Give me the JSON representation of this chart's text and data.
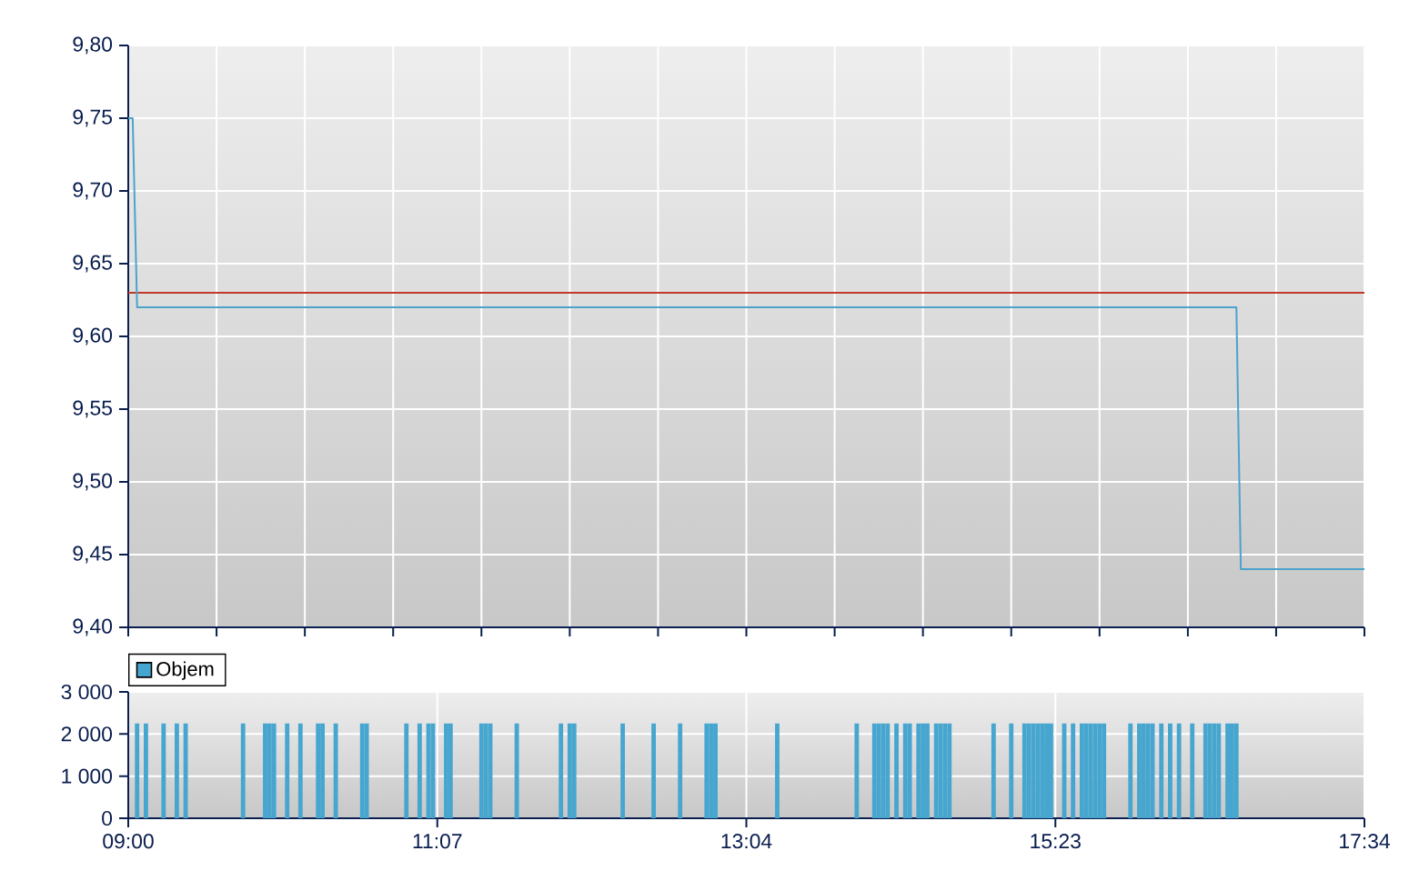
{
  "chart_data": [
    {
      "type": "line",
      "categories": [
        null,
        null,
        null,
        null,
        null,
        null,
        null,
        null,
        null,
        null,
        null,
        null,
        null,
        null,
        null,
        null,
        null,
        null,
        null,
        null,
        null,
        null,
        null,
        null,
        null,
        null,
        null,
        null,
        null,
        null,
        null,
        null,
        null,
        null,
        null,
        null,
        null,
        null,
        null,
        null,
        null,
        null,
        null,
        null,
        null,
        null,
        null,
        null,
        null,
        null,
        null,
        null,
        null,
        null,
        null,
        null,
        null,
        null,
        null,
        null,
        null,
        null,
        null,
        null,
        null,
        null,
        null,
        null,
        null,
        null,
        null,
        null,
        null,
        null,
        null,
        null,
        null,
        null,
        null,
        null,
        null,
        null,
        null,
        null,
        null,
        null,
        null,
        null,
        null,
        null,
        null,
        null,
        null,
        null,
        null,
        null,
        null,
        null,
        null,
        null,
        null,
        null,
        null,
        null,
        null,
        null,
        null,
        null,
        null,
        null,
        null,
        null,
        null,
        null,
        null,
        null,
        null,
        null,
        null,
        null,
        null,
        null,
        null,
        null,
        null,
        null,
        null,
        null,
        null,
        null,
        null,
        null,
        null,
        null,
        null,
        null,
        null,
        null,
        null,
        null,
        null,
        null,
        null,
        null,
        null,
        null,
        null,
        null,
        null,
        null,
        null,
        null,
        null,
        null,
        null,
        null,
        null,
        null,
        null,
        null,
        null,
        null,
        null,
        null,
        null,
        null,
        null,
        null,
        null,
        null,
        null,
        null,
        null,
        null,
        null,
        null,
        null,
        null,
        null,
        null,
        null,
        null,
        null,
        null,
        null,
        null,
        null,
        null,
        null,
        null,
        null,
        null,
        null,
        null,
        null,
        null,
        null,
        null,
        null,
        null,
        null,
        null,
        null,
        null,
        null,
        null,
        null,
        null,
        null,
        null,
        null,
        null,
        null,
        null,
        null,
        null,
        null,
        null,
        null,
        null,
        null,
        null,
        null,
        null,
        null,
        null,
        null,
        null,
        null,
        null,
        null,
        null,
        null,
        null,
        null,
        null,
        null,
        null,
        null,
        null,
        null,
        null,
        null,
        null,
        null,
        null,
        null,
        null,
        null,
        null,
        null,
        null,
        null,
        null,
        null,
        null,
        null,
        null,
        null,
        null,
        null,
        null,
        null,
        null,
        null,
        null,
        null,
        null,
        null,
        null,
        null,
        null,
        null,
        null,
        null,
        null,
        null,
        null,
        null,
        null,
        null
      ],
      "ylim": [
        9.4,
        9.8
      ],
      "yticks": [
        {
          "value": 9.4,
          "label": "9,40"
        },
        {
          "value": 9.45,
          "label": "9,45"
        },
        {
          "value": 9.5,
          "label": "9,50"
        },
        {
          "value": 9.55,
          "label": "9,55"
        },
        {
          "value": 9.6,
          "label": "9,60"
        },
        {
          "value": 9.65,
          "label": "9,65"
        },
        {
          "value": 9.7,
          "label": "9,70"
        },
        {
          "value": 9.75,
          "label": "9,75"
        },
        {
          "value": 9.8,
          "label": "9,80"
        }
      ],
      "tick_labels": "y",
      "grid": true,
      "legend": false,
      "marker": "none",
      "series": [
        {
          "color": "#4ba3cc",
          "values": [
            9.75,
            9.75,
            9.62,
            9.62,
            9.62,
            9.62,
            9.62,
            9.62,
            9.62,
            9.62,
            9.62,
            9.62,
            9.62,
            9.62,
            9.62,
            9.62,
            9.62,
            9.62,
            9.62,
            9.62,
            9.62,
            9.62,
            9.62,
            9.62,
            9.62,
            9.62,
            9.62,
            9.62,
            9.62,
            9.62,
            9.62,
            9.62,
            9.62,
            9.62,
            9.62,
            9.62,
            9.62,
            9.62,
            9.62,
            9.62,
            9.62,
            9.62,
            9.62,
            9.62,
            9.62,
            9.62,
            9.62,
            9.62,
            9.62,
            9.62,
            9.62,
            9.62,
            9.62,
            9.62,
            9.62,
            9.62,
            9.62,
            9.62,
            9.62,
            9.62,
            9.62,
            9.62,
            9.62,
            9.62,
            9.62,
            9.62,
            9.62,
            9.62,
            9.62,
            9.62,
            9.62,
            9.62,
            9.62,
            9.62,
            9.62,
            9.62,
            9.62,
            9.62,
            9.62,
            9.62,
            9.62,
            9.62,
            9.62,
            9.62,
            9.62,
            9.62,
            9.62,
            9.62,
            9.62,
            9.62,
            9.62,
            9.62,
            9.62,
            9.62,
            9.62,
            9.62,
            9.62,
            9.62,
            9.62,
            9.62,
            9.62,
            9.62,
            9.62,
            9.62,
            9.62,
            9.62,
            9.62,
            9.62,
            9.62,
            9.62,
            9.62,
            9.62,
            9.62,
            9.62,
            9.62,
            9.62,
            9.62,
            9.62,
            9.62,
            9.62,
            9.62,
            9.62,
            9.62,
            9.62,
            9.62,
            9.62,
            9.62,
            9.62,
            9.62,
            9.62,
            9.62,
            9.62,
            9.62,
            9.62,
            9.62,
            9.62,
            9.62,
            9.62,
            9.62,
            9.62,
            9.62,
            9.62,
            9.62,
            9.62,
            9.62,
            9.62,
            9.62,
            9.62,
            9.62,
            9.62,
            9.62,
            9.62,
            9.62,
            9.62,
            9.62,
            9.62,
            9.62,
            9.62,
            9.62,
            9.62,
            9.62,
            9.62,
            9.62,
            9.62,
            9.62,
            9.62,
            9.62,
            9.62,
            9.62,
            9.62,
            9.62,
            9.62,
            9.62,
            9.62,
            9.62,
            9.62,
            9.62,
            9.62,
            9.62,
            9.62,
            9.62,
            9.62,
            9.62,
            9.62,
            9.62,
            9.62,
            9.62,
            9.62,
            9.62,
            9.62,
            9.62,
            9.62,
            9.62,
            9.62,
            9.62,
            9.62,
            9.62,
            9.62,
            9.62,
            9.62,
            9.62,
            9.62,
            9.62,
            9.62,
            9.62,
            9.62,
            9.62,
            9.62,
            9.62,
            9.62,
            9.62,
            9.62,
            9.62,
            9.62,
            9.62,
            9.62,
            9.62,
            9.62,
            9.62,
            9.62,
            9.62,
            9.62,
            9.62,
            9.62,
            9.62,
            9.62,
            9.62,
            9.62,
            9.62,
            9.62,
            9.62,
            9.62,
            9.62,
            9.62,
            9.62,
            9.62,
            9.62,
            9.62,
            9.62,
            9.62,
            9.62,
            9.62,
            9.62,
            9.62,
            9.62,
            9.62,
            9.62,
            9.62,
            9.62,
            9.62,
            9.62,
            9.62,
            9.44,
            9.44,
            9.44,
            9.44,
            9.44,
            9.44,
            9.44,
            9.44,
            9.44,
            9.44,
            9.44,
            9.44,
            9.44,
            9.44,
            9.44,
            9.44,
            9.44,
            9.44,
            9.44,
            9.44,
            9.44,
            9.44,
            9.44,
            9.44,
            9.44,
            9.44,
            9.44,
            9.44,
            9.44
          ]
        }
      ],
      "ref_lines": [
        {
          "axis": "y",
          "value": 9.63,
          "color": "#c0392b"
        }
      ]
    },
    {
      "type": "bar",
      "categories": [
        "09:00",
        null,
        null,
        null,
        null,
        null,
        null,
        null,
        null,
        null,
        null,
        null,
        null,
        null,
        null,
        null,
        null,
        null,
        null,
        null,
        null,
        null,
        null,
        null,
        null,
        null,
        null,
        null,
        null,
        null,
        null,
        null,
        null,
        null,
        null,
        null,
        null,
        null,
        null,
        null,
        null,
        null,
        null,
        null,
        null,
        null,
        null,
        null,
        null,
        null,
        null,
        null,
        null,
        null,
        null,
        null,
        null,
        null,
        null,
        null,
        null,
        null,
        null,
        null,
        null,
        null,
        null,
        null,
        null,
        null,
        "11:07",
        null,
        null,
        null,
        null,
        null,
        null,
        null,
        null,
        null,
        null,
        null,
        null,
        null,
        null,
        null,
        null,
        null,
        null,
        null,
        null,
        null,
        null,
        null,
        null,
        null,
        null,
        null,
        null,
        null,
        null,
        null,
        null,
        null,
        null,
        null,
        null,
        null,
        null,
        null,
        null,
        null,
        null,
        null,
        null,
        null,
        null,
        null,
        null,
        null,
        null,
        null,
        null,
        null,
        null,
        null,
        null,
        null,
        null,
        null,
        null,
        null,
        null,
        null,
        null,
        null,
        null,
        null,
        null,
        null,
        "13:04",
        null,
        null,
        null,
        null,
        null,
        null,
        null,
        null,
        null,
        null,
        null,
        null,
        null,
        null,
        null,
        null,
        null,
        null,
        null,
        null,
        null,
        null,
        null,
        null,
        null,
        null,
        null,
        null,
        null,
        null,
        null,
        null,
        null,
        null,
        null,
        null,
        null,
        null,
        null,
        null,
        null,
        null,
        null,
        null,
        null,
        null,
        null,
        null,
        null,
        null,
        null,
        null,
        null,
        null,
        null,
        null,
        null,
        null,
        null,
        null,
        null,
        null,
        null,
        null,
        null,
        null,
        null,
        null,
        null,
        "15:23",
        null,
        null,
        null,
        null,
        null,
        null,
        null,
        null,
        null,
        null,
        null,
        null,
        null,
        null,
        null,
        null,
        null,
        null,
        null,
        null,
        null,
        null,
        null,
        null,
        null,
        null,
        null,
        null,
        null,
        null,
        null,
        null,
        null,
        null,
        null,
        null,
        null,
        null,
        null,
        null,
        null,
        null,
        null,
        null,
        null,
        null,
        null,
        null,
        null,
        null,
        null,
        null,
        null,
        null,
        null,
        null,
        null,
        null,
        null,
        null,
        null,
        null,
        null,
        null,
        null,
        null,
        null,
        null,
        null,
        "17:34"
      ],
      "ylim": [
        0,
        3000
      ],
      "yticks": [
        0,
        {
          "value": 1000,
          "label": "1 000"
        },
        {
          "value": 2000,
          "label": "2 000"
        },
        {
          "value": 3000,
          "label": "3 000"
        }
      ],
      "grid": true,
      "legend": "top left",
      "series": [
        {
          "name": "Objem",
          "color": "#46a6cf",
          "values": [
            null,
            null,
            2250,
            null,
            2250,
            null,
            null,
            null,
            2250,
            null,
            null,
            2250,
            null,
            2250,
            null,
            null,
            null,
            null,
            null,
            null,
            null,
            null,
            null,
            null,
            null,
            null,
            2250,
            null,
            null,
            null,
            null,
            2250,
            2250,
            2250,
            null,
            null,
            2250,
            null,
            null,
            2250,
            null,
            null,
            null,
            2250,
            2250,
            null,
            null,
            2250,
            null,
            null,
            null,
            null,
            null,
            2250,
            2250,
            null,
            null,
            null,
            null,
            null,
            null,
            null,
            null,
            2250,
            null,
            null,
            2250,
            null,
            2250,
            2250,
            null,
            null,
            2250,
            2250,
            null,
            null,
            null,
            null,
            null,
            null,
            2250,
            2250,
            2250,
            null,
            null,
            null,
            null,
            null,
            2250,
            null,
            null,
            null,
            null,
            null,
            null,
            null,
            null,
            null,
            2250,
            null,
            2250,
            2250,
            null,
            null,
            null,
            null,
            null,
            null,
            null,
            null,
            null,
            null,
            2250,
            null,
            null,
            null,
            null,
            null,
            null,
            2250,
            null,
            null,
            null,
            null,
            null,
            2250,
            null,
            null,
            null,
            null,
            null,
            2250,
            2250,
            2250,
            null,
            null,
            null,
            null,
            null,
            null,
            null,
            null,
            null,
            null,
            null,
            null,
            null,
            2250,
            null,
            null,
            null,
            null,
            null,
            null,
            null,
            null,
            null,
            null,
            null,
            null,
            null,
            null,
            null,
            null,
            null,
            2250,
            null,
            null,
            null,
            2250,
            2250,
            2250,
            2250,
            null,
            2250,
            null,
            2250,
            2250,
            null,
            2250,
            2250,
            2250,
            null,
            2250,
            2250,
            2250,
            2250,
            null,
            null,
            null,
            null,
            null,
            null,
            null,
            null,
            null,
            2250,
            null,
            null,
            null,
            2250,
            null,
            null,
            2250,
            2250,
            2250,
            2250,
            2250,
            2250,
            2250,
            null,
            null,
            2250,
            null,
            2250,
            null,
            2250,
            2250,
            2250,
            2250,
            2250,
            2250,
            null,
            null,
            null,
            null,
            null,
            2250,
            null,
            2250,
            2250,
            2250,
            2250,
            null,
            2250,
            null,
            2250,
            null,
            2250,
            null,
            null,
            2250,
            null,
            null,
            2250,
            2250,
            2250,
            2250,
            null,
            2250,
            2250,
            2250,
            null,
            null,
            null,
            null,
            null,
            null,
            null,
            null,
            null,
            null,
            null,
            null,
            null,
            null,
            null,
            null,
            null,
            null,
            null,
            null,
            null,
            null,
            null,
            null,
            null,
            null,
            null,
            null,
            null
          ]
        }
      ]
    }
  ]
}
